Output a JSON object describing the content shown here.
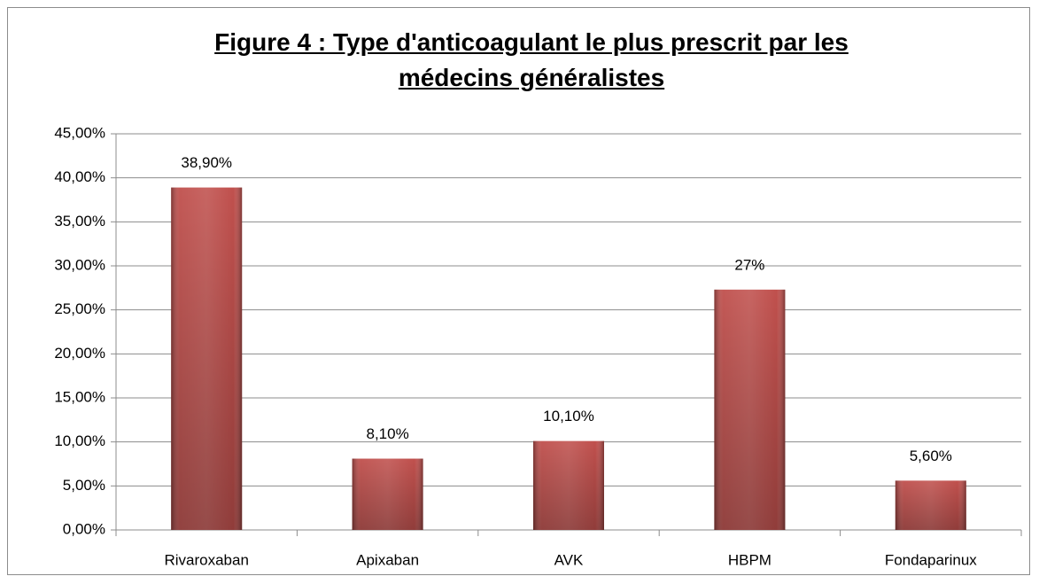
{
  "chart_data": {
    "type": "bar",
    "title": "Figure 4 : Type d'anticoagulant le plus prescrit par les médecins généralistes",
    "categories": [
      "Rivaroxaban",
      "Apixaban",
      "AVK",
      "HBPM",
      "Fondaparinux"
    ],
    "values": [
      38.9,
      8.1,
      10.1,
      27.3,
      5.6
    ],
    "value_labels": [
      "38,90%",
      "8,10%",
      "10,10%",
      "27%",
      "5,60%"
    ],
    "color": "#c0504d",
    "ylim": [
      0,
      45
    ],
    "yticks": [
      {
        "value": 0,
        "label": "0,00%"
      },
      {
        "value": 5,
        "label": "5,00%"
      },
      {
        "value": 10,
        "label": "10,00%"
      },
      {
        "value": 15,
        "label": "15,00%"
      },
      {
        "value": 20,
        "label": "20,00%"
      },
      {
        "value": 25,
        "label": "25,00%"
      },
      {
        "value": 30,
        "label": "30,00%"
      },
      {
        "value": 35,
        "label": "35,00%"
      },
      {
        "value": 40,
        "label": "40,00%"
      },
      {
        "value": 45,
        "label": "45,00%"
      }
    ],
    "grid": true
  }
}
